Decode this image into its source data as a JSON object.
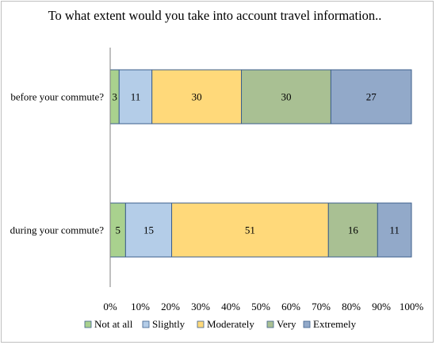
{
  "chart_data": {
    "type": "bar",
    "orientation": "horizontal",
    "stacked": "percent",
    "title": "To what extent would you take into account travel information..",
    "categories": [
      "before your commute?",
      "during your commute?"
    ],
    "series": [
      {
        "name": "Not at all",
        "values": [
          3,
          5
        ],
        "color": "#a9d18e"
      },
      {
        "name": "Slightly",
        "values": [
          11,
          15
        ],
        "color": "#b4cde8"
      },
      {
        "name": "Moderately",
        "values": [
          30,
          51
        ],
        "color": "#ffd97a"
      },
      {
        "name": "Very",
        "values": [
          30,
          16
        ],
        "color": "#a9c093"
      },
      {
        "name": "Extremely",
        "values": [
          27,
          11
        ],
        "color": "#92a9c9"
      }
    ],
    "xticks": [
      "0%",
      "10%",
      "20%",
      "30%",
      "40%",
      "50%",
      "60%",
      "70%",
      "80%",
      "90%",
      "100%"
    ],
    "xlim": [
      0,
      100
    ],
    "grid": false,
    "legend": "bottom"
  },
  "colors": {
    "edge": "#3c5f8c",
    "axis": "#808080"
  }
}
